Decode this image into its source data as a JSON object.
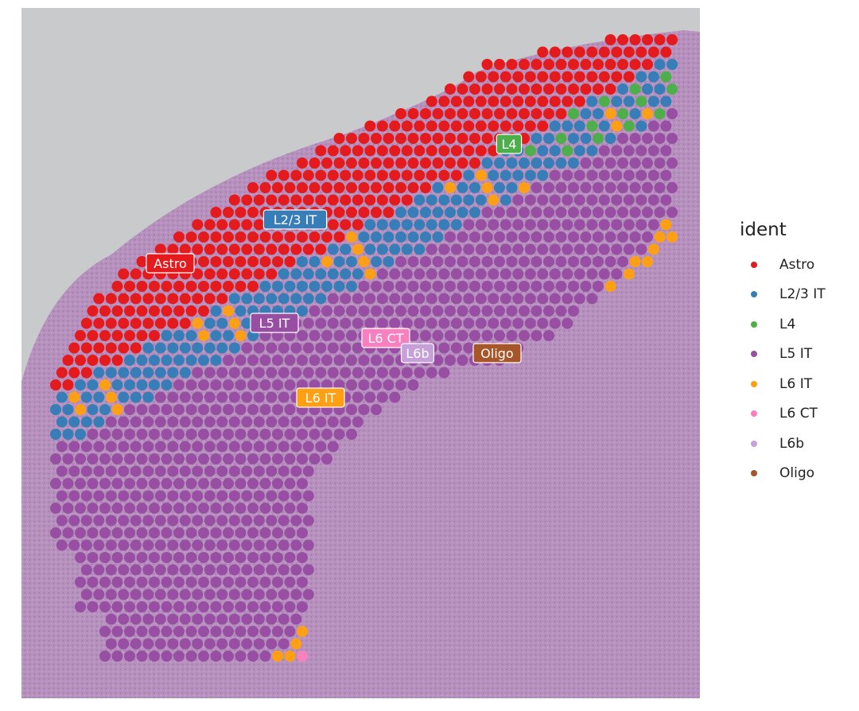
{
  "chart_data": {
    "type": "scatter",
    "description_free": true,
    "legend_title": "ident",
    "clusters": [
      {
        "name": "Astro",
        "color": "#e41a1c"
      },
      {
        "name": "L2/3 IT",
        "color": "#377eb8"
      },
      {
        "name": "L4",
        "color": "#4daf4a"
      },
      {
        "name": "L5 IT",
        "color": "#984ea3"
      },
      {
        "name": "L6 IT",
        "color": "#ff9f14"
      },
      {
        "name": "L6 CT",
        "color": "#f781bf"
      },
      {
        "name": "L6b",
        "color": "#c6a0d8"
      },
      {
        "name": "Oligo",
        "color": "#a65628"
      }
    ],
    "cluster_labels": [
      "Astro",
      "L2/3 IT",
      "L4",
      "L5 IT",
      "L6 CT",
      "L6b",
      "Oligo",
      "L6 IT"
    ]
  },
  "colors": {
    "tissue": "#b487bb",
    "background_slide": "#c9cacb"
  }
}
